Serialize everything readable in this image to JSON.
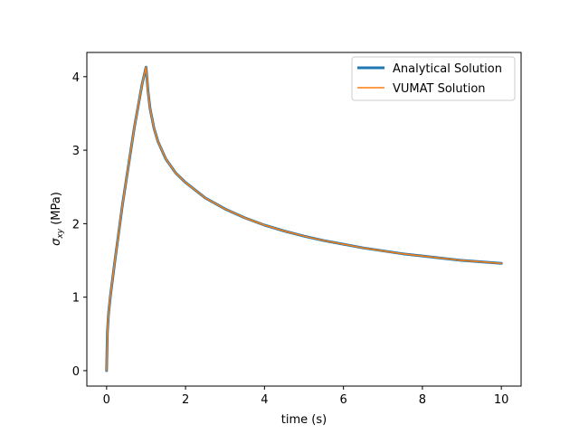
{
  "chart_data": {
    "type": "line",
    "title": "",
    "xlabel": "time (s)",
    "ylabel": {
      "symbol": "σ",
      "subscript": "xy",
      "unit": " (MPa)"
    },
    "xlim": [
      -0.5,
      10.5
    ],
    "ylim": [
      -0.21,
      4.33
    ],
    "xticks": [
      0,
      2,
      4,
      6,
      8,
      10
    ],
    "yticks": [
      0,
      1,
      2,
      3,
      4
    ],
    "xtick_labels": [
      "0",
      "2",
      "4",
      "6",
      "8",
      "10"
    ],
    "ytick_labels": [
      "0",
      "1",
      "2",
      "3",
      "4"
    ],
    "grid": false,
    "legend_position": "top-right",
    "series": [
      {
        "name": "Analytical Solution",
        "color": "#1f77b4",
        "style": "thick",
        "x": [
          0,
          0.02,
          0.05,
          0.1,
          0.2,
          0.3,
          0.4,
          0.5,
          0.6,
          0.7,
          0.8,
          0.9,
          1.0,
          1.05,
          1.1,
          1.2,
          1.3,
          1.5,
          1.75,
          2.0,
          2.5,
          3.0,
          3.5,
          4.0,
          4.5,
          5.0,
          5.5,
          6.0,
          6.5,
          7.0,
          7.5,
          8.0,
          8.5,
          9.0,
          9.5,
          10.0
        ],
        "y": [
          0,
          0.52,
          0.78,
          1.03,
          1.45,
          1.85,
          2.25,
          2.6,
          2.95,
          3.3,
          3.6,
          3.9,
          4.13,
          3.8,
          3.57,
          3.3,
          3.12,
          2.88,
          2.69,
          2.56,
          2.35,
          2.2,
          2.08,
          1.98,
          1.9,
          1.83,
          1.77,
          1.72,
          1.67,
          1.63,
          1.59,
          1.56,
          1.53,
          1.5,
          1.48,
          1.46
        ]
      },
      {
        "name": "VUMAT Solution",
        "color": "#ff7f0e",
        "style": "thin",
        "x": [
          0,
          0.02,
          0.05,
          0.1,
          0.2,
          0.3,
          0.4,
          0.5,
          0.6,
          0.7,
          0.8,
          0.9,
          1.0,
          1.05,
          1.1,
          1.2,
          1.3,
          1.5,
          1.75,
          2.0,
          2.5,
          3.0,
          3.5,
          4.0,
          4.5,
          5.0,
          5.5,
          6.0,
          6.5,
          7.0,
          7.5,
          8.0,
          8.5,
          9.0,
          9.5,
          10.0
        ],
        "y": [
          0,
          0.52,
          0.78,
          1.03,
          1.45,
          1.85,
          2.25,
          2.6,
          2.95,
          3.3,
          3.6,
          3.9,
          4.13,
          3.8,
          3.57,
          3.3,
          3.12,
          2.88,
          2.69,
          2.56,
          2.35,
          2.2,
          2.08,
          1.98,
          1.9,
          1.83,
          1.77,
          1.72,
          1.67,
          1.63,
          1.59,
          1.56,
          1.53,
          1.5,
          1.48,
          1.46
        ]
      }
    ]
  }
}
